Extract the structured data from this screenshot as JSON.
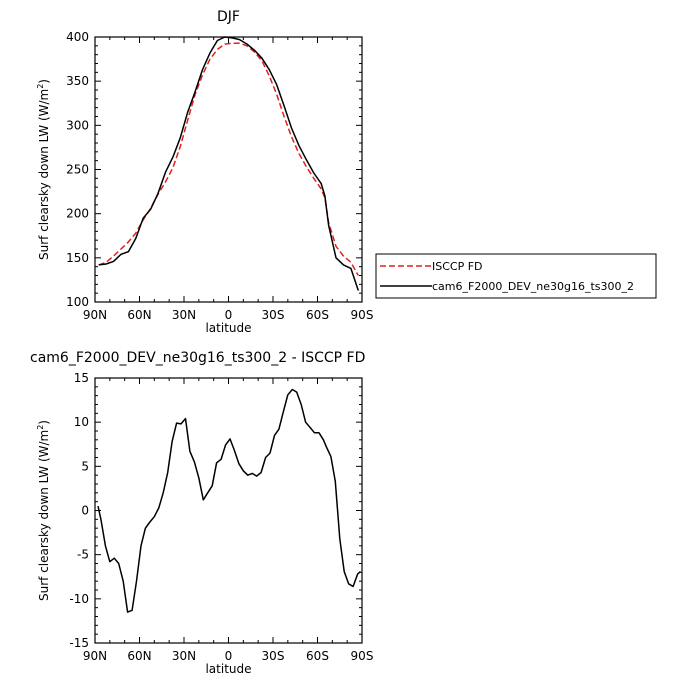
{
  "chart_data": [
    {
      "type": "line",
      "title": "DJF",
      "xlabel": "latitude",
      "ylabel": "Surf clearsky down LW (W/m",
      "ylabel_sup": "2",
      "ylabel_close": ")",
      "xlim": [
        90,
        -90
      ],
      "ylim": [
        100,
        400
      ],
      "x_ticks": [
        90,
        60,
        30,
        0,
        -30,
        -60,
        -90
      ],
      "x_tick_labels": [
        "90N",
        "60N",
        "30N",
        "0",
        "30S",
        "60S",
        "90S"
      ],
      "y_ticks": [
        100,
        150,
        200,
        250,
        300,
        350,
        400
      ],
      "y_tick_labels": [
        "100",
        "150",
        "200",
        "250",
        "300",
        "350",
        "400"
      ],
      "legend_position": "right",
      "series": [
        {
          "name": "ISCCP FD",
          "color": "#e02020",
          "dash": "dashed",
          "x": [
            87.5,
            82.5,
            77.5,
            72.5,
            67.5,
            62.5,
            57.5,
            52.5,
            47.5,
            42.5,
            37.5,
            32.5,
            27.5,
            22.5,
            17.5,
            12.5,
            7.5,
            2.5,
            -2.5,
            -7.5,
            -12.5,
            -17.5,
            -22.5,
            -27.5,
            -32.5,
            -37.5,
            -42.5,
            -47.5,
            -52.5,
            -57.5,
            -62.5,
            -65,
            -67.5,
            -72.5,
            -77.5,
            -82.5,
            -87.5
          ],
          "y": [
            142,
            145,
            152,
            160,
            168,
            178,
            193,
            206,
            222,
            236,
            252,
            276,
            306,
            335,
            357,
            375,
            386,
            392,
            393,
            393,
            390,
            383,
            373,
            356,
            335,
            310,
            287,
            268,
            253,
            240,
            228,
            218,
            190,
            163,
            152,
            145,
            130
          ]
        },
        {
          "name": "cam6_F2000_DEV_ne30g16_ts300_2",
          "color": "#000000",
          "dash": "solid",
          "x": [
            87.5,
            82.5,
            77.5,
            72.5,
            67.5,
            62.5,
            57.5,
            52.5,
            47.5,
            42.5,
            37.5,
            32.5,
            27.5,
            22.5,
            17.5,
            12.5,
            7.5,
            2.5,
            -2.5,
            -7.5,
            -12.5,
            -17.5,
            -22.5,
            -27.5,
            -32.5,
            -37.5,
            -42.5,
            -47.5,
            -52.5,
            -57.5,
            -62.5,
            -65,
            -67.5,
            -72.5,
            -77.5,
            -82.5,
            -87.5
          ],
          "y": [
            142,
            143,
            146,
            154,
            157,
            172,
            195,
            205,
            223,
            247,
            264,
            286,
            315,
            338,
            363,
            382,
            396,
            400,
            399,
            397,
            392,
            385,
            376,
            363,
            346,
            322,
            297,
            277,
            261,
            246,
            234,
            220,
            187,
            150,
            142,
            138,
            113
          ]
        }
      ]
    },
    {
      "type": "line",
      "title": "cam6_F2000_DEV_ne30g16_ts300_2 - ISCCP FD",
      "xlabel": "latitude",
      "ylabel": "Surf clearsky down LW (W/m",
      "ylabel_sup": "2",
      "ylabel_close": ")",
      "xlim": [
        90,
        -90
      ],
      "ylim": [
        -15,
        15
      ],
      "x_ticks": [
        90,
        60,
        30,
        0,
        -30,
        -60,
        -90
      ],
      "x_tick_labels": [
        "90N",
        "60N",
        "30N",
        "0",
        "30S",
        "60S",
        "90S"
      ],
      "y_ticks": [
        -15,
        -10,
        -5,
        0,
        5,
        10,
        15
      ],
      "y_tick_labels": [
        "-15",
        "-10",
        "-5",
        "0",
        "5",
        "10",
        "15"
      ],
      "series": [
        {
          "color": "#000000",
          "dash": "solid",
          "x": [
            88,
            86,
            83,
            80,
            77,
            74,
            71,
            68,
            65,
            62,
            59,
            56,
            53,
            50,
            47,
            44,
            41,
            38,
            35,
            32,
            29,
            26,
            23,
            20,
            17,
            14,
            11,
            8,
            5,
            2,
            -1,
            -4,
            -7,
            -10,
            -13,
            -16,
            -19,
            -22,
            -25,
            -28,
            -31,
            -34,
            -37,
            -40,
            -43,
            -46,
            -49,
            -52,
            -55,
            -58,
            -61,
            -64,
            -66,
            -69,
            -72,
            -75,
            -78,
            -81,
            -84,
            -87,
            -89
          ],
          "y": [
            0.5,
            -1,
            -4,
            -5.8,
            -5.4,
            -6,
            -8,
            -11.5,
            -11.3,
            -8,
            -4,
            -2,
            -1.3,
            -0.7,
            0.3,
            2,
            4.3,
            7.8,
            9.9,
            9.8,
            10.4,
            6.7,
            5.5,
            3.7,
            1.2,
            2,
            2.8,
            5.4,
            5.8,
            7.4,
            8.1,
            6.8,
            5.3,
            4.5,
            4.0,
            4.2,
            3.9,
            4.3,
            6.0,
            6.5,
            8.5,
            9.2,
            11.2,
            13.1,
            13.7,
            13.4,
            12,
            10.0,
            9.4,
            8.8,
            8.8,
            8.0,
            7.2,
            6.1,
            3.3,
            -3.2,
            -6.9,
            -8.3,
            -8.6,
            -7.2,
            -6.9
          ]
        }
      ]
    }
  ]
}
